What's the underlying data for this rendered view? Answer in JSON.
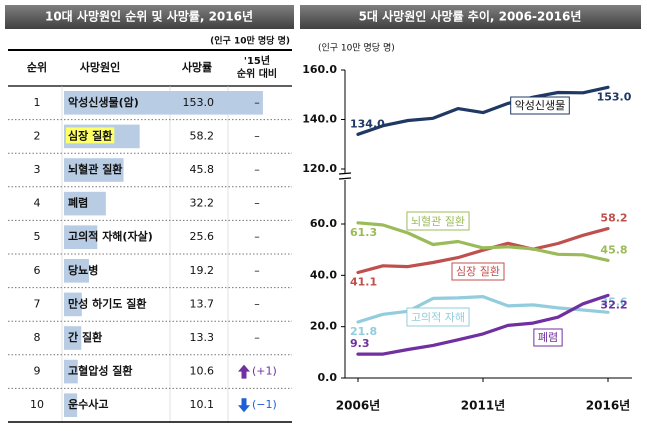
{
  "table": {
    "title": "10대 사망원인 순위 및 사망률, 2016년",
    "unit": "(인구 10만 명당 명)",
    "header": [
      "순위",
      "사망원인",
      "사망률"
    ],
    "change_header": [
      "'15년",
      "순위 대비"
    ],
    "ranks": [
      1,
      2,
      3,
      4,
      5,
      6,
      7,
      8,
      9,
      10
    ],
    "causes": [
      "악성신생물(암)",
      "심장 질환",
      "뇌혈관 질환",
      "폐렴",
      "고의적 자해(자살)",
      "당뇨병",
      "만성 하기도 질환",
      "간 질환",
      "고혈압성 질환",
      "운수사고"
    ],
    "rates": [
      153.0,
      58.2,
      45.8,
      32.2,
      25.6,
      19.2,
      13.7,
      13.3,
      10.6,
      10.1
    ],
    "rate_labels": [
      "153.0",
      "58.2",
      "45.8",
      "32.2",
      "25.6",
      "19.2",
      "13.7",
      "13.3",
      "10.6",
      "10.1"
    ],
    "changes": [
      "–",
      "–",
      "–",
      "–",
      "–",
      "–",
      "–",
      "–",
      "(+1)",
      "(−1)"
    ]
  },
  "chart_data": {
    "type": "line",
    "title": "5대 사망원인 사망률 추이, 2006-2016년",
    "y_label": "(인구 10만 명당 명)",
    "x": [
      2006,
      2007,
      2008,
      2009,
      2010,
      2011,
      2012,
      2013,
      2014,
      2015,
      2016
    ],
    "xlim": [
      2006,
      2016
    ],
    "xticks": [
      {
        "value": 2006,
        "label": "2006년"
      },
      {
        "value": 2011,
        "label": "2011년"
      },
      {
        "value": 2016,
        "label": "2016년"
      }
    ],
    "ylim": [
      0,
      160
    ],
    "yticks": [
      {
        "value": 0,
        "label": "0.0"
      },
      {
        "value": 20,
        "label": "20.0"
      },
      {
        "value": 40,
        "label": "40.0"
      },
      {
        "value": 60,
        "label": "60.0"
      },
      {
        "value": 120,
        "label": "120.0"
      },
      {
        "value": 140,
        "label": "140.0"
      },
      {
        "value": 160,
        "label": "160.0"
      }
    ],
    "broken_axis": true,
    "series": [
      {
        "name": "악성신생물",
        "color": "#1f3864",
        "values": [
          134.0,
          137.5,
          139.6,
          140.5,
          144.4,
          142.8,
          146.5,
          149.0,
          150.9,
          150.8,
          153.0
        ],
        "value_labels": [
          "134.0",
          null,
          null,
          null,
          null,
          null,
          null,
          null,
          null,
          null,
          "153.0"
        ]
      },
      {
        "name": "심장 질환",
        "color": "#c0504d",
        "values": [
          41.1,
          43.7,
          43.4,
          45.0,
          46.9,
          49.8,
          52.5,
          50.2,
          52.4,
          55.6,
          58.2
        ],
        "value_labels": [
          "41.1",
          null,
          null,
          null,
          null,
          null,
          null,
          null,
          null,
          null,
          "58.2"
        ]
      },
      {
        "name": "뇌혈관 질환",
        "color": "#9bbb59",
        "values": [
          61.3,
          59.6,
          56.5,
          52.0,
          53.2,
          50.7,
          51.1,
          50.3,
          48.2,
          48.0,
          45.8
        ],
        "value_labels": [
          "61.3",
          null,
          null,
          null,
          null,
          null,
          null,
          null,
          null,
          null,
          "45.8"
        ]
      },
      {
        "name": "고의적 자해",
        "color": "#93cddd",
        "values": [
          21.8,
          24.8,
          26.0,
          31.0,
          31.2,
          31.7,
          28.1,
          28.5,
          27.3,
          26.5,
          25.6
        ],
        "value_labels": [
          "21.8",
          null,
          null,
          null,
          null,
          null,
          null,
          null,
          null,
          null,
          "25.6"
        ]
      },
      {
        "name": "폐렴",
        "color": "#7030a0",
        "values": [
          9.3,
          9.3,
          11.1,
          12.7,
          14.9,
          17.2,
          20.5,
          21.4,
          23.7,
          28.9,
          32.2
        ],
        "value_labels": [
          "9.3",
          null,
          null,
          null,
          null,
          null,
          null,
          null,
          null,
          null,
          "32.2"
        ]
      }
    ]
  }
}
